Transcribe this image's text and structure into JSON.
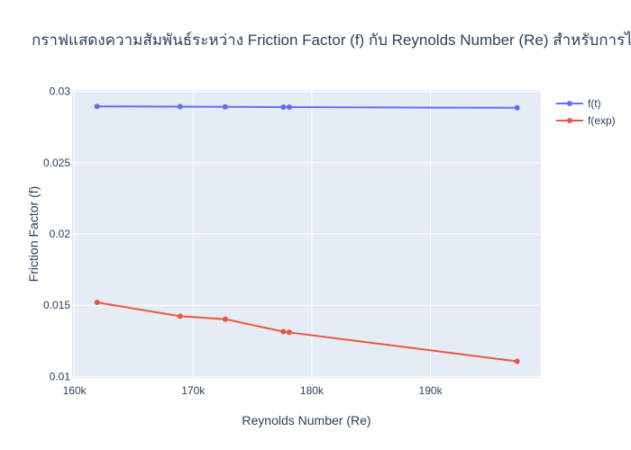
{
  "chart_data": {
    "type": "line",
    "title": "กราฟแสดงความสัมพันธ์ระหว่าง Friction Factor (f) กับ Reynolds Number (Re) สำหรับการไหลในท่อ",
    "xlabel": "Reynolds Number (Re)",
    "ylabel": "Friction Factor (f)",
    "xlim": [
      159800,
      199300
    ],
    "ylim": [
      0.0099,
      0.0301
    ],
    "x_ticks": [
      {
        "value": 160000,
        "label": "160k"
      },
      {
        "value": 170000,
        "label": "170k"
      },
      {
        "value": 180000,
        "label": "180k"
      },
      {
        "value": 190000,
        "label": "190k"
      }
    ],
    "y_ticks": [
      {
        "value": 0.01,
        "label": "0.01"
      },
      {
        "value": 0.015,
        "label": "0.015"
      },
      {
        "value": 0.02,
        "label": "0.02"
      },
      {
        "value": 0.025,
        "label": "0.025"
      },
      {
        "value": 0.03,
        "label": "0.03"
      }
    ],
    "x": [
      161900,
      168900,
      172700,
      177600,
      178100,
      197300
    ],
    "series": [
      {
        "name": "f(t)",
        "color": "#636efa",
        "values": [
          0.02895,
          0.02893,
          0.02892,
          0.0289,
          0.0289,
          0.02885
        ]
      },
      {
        "name": "f(exp)",
        "color": "#ef553b",
        "values": [
          0.0152,
          0.01423,
          0.01403,
          0.01315,
          0.0131,
          0.01107
        ]
      }
    ],
    "grid": true,
    "legend": "top-right",
    "plot_background": "#e5ecf6"
  }
}
